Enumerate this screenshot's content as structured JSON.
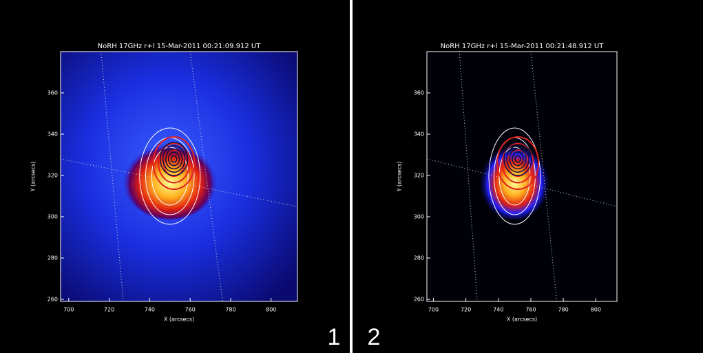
{
  "panels": [
    {
      "title": "NoRH 17GHz r+l 15-Mar-2011 00:21:09.912 UT",
      "xlabel": "X (arcsecs)",
      "ylabel": "Y (arcsecs)",
      "xlim": [
        696,
        813
      ],
      "ylim": [
        259,
        380
      ],
      "xticks": [
        700,
        720,
        740,
        760,
        780,
        800
      ],
      "yticks": [
        260,
        280,
        300,
        320,
        340,
        360
      ],
      "label": "1"
    },
    {
      "title": "NoRH 17GHz r+l 15-Mar-2011 00:21:48.912 UT",
      "xlabel": "X (arcsecs)",
      "ylabel": "Y (arcsecs)",
      "xlim": [
        696,
        813
      ],
      "ylim": [
        259,
        380
      ],
      "xticks": [
        700,
        720,
        740,
        760,
        780,
        800
      ],
      "yticks": [
        260,
        280,
        300,
        320,
        340,
        360
      ],
      "label": "2"
    }
  ]
}
